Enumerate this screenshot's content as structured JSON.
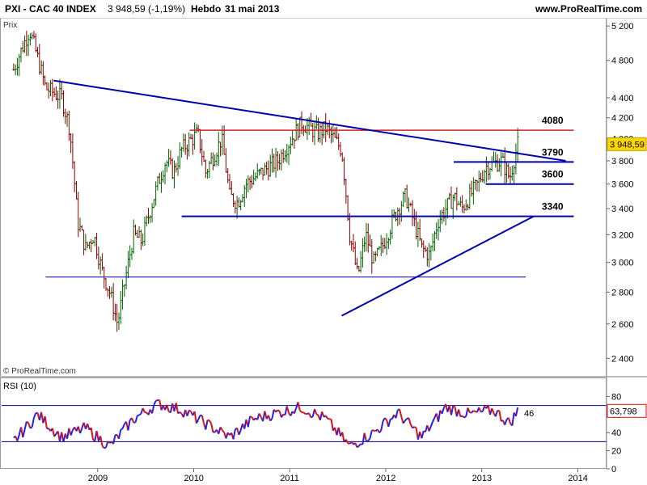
{
  "header": {
    "logo_text": "PXI",
    "instrument": "PXI - CAC 40 INDEX",
    "last_value": "3 948,59 (-1,19%)",
    "period": "Hebdo",
    "date": "31 mai 2013",
    "site": "www.ProRealTime.com"
  },
  "colors": {
    "up_bar": "#006400",
    "down_bar": "#8b0000",
    "trendline": "#0000aa",
    "resistance": "#cc2222",
    "rsi_up": "#2222ee",
    "rsi_down": "#dd1111",
    "rsi_level": "#000080"
  },
  "chart_data": [
    {
      "type": "line",
      "title": "PXI - CAC 40 INDEX",
      "ylabel": "Prix",
      "ylim": [
        2300,
        5300
      ],
      "x_ticks": [
        "2009",
        "2010",
        "2011",
        "2012",
        "2013",
        "2014"
      ],
      "y_ticks": [
        "2 400",
        "2 600",
        "2 800",
        "3 000",
        "3 200",
        "3 400",
        "3 600",
        "3 800",
        "4 000",
        "4 200",
        "4 400",
        "4 800",
        "5 200"
      ],
      "watermark": "© ProRealTime.com",
      "price_label": "3 948,59",
      "series": [
        {
          "x": [
            "2008-02",
            "2008-04",
            "2008-06",
            "2008-08",
            "2008-09",
            "2008-10",
            "2008-11",
            "2008-12",
            "2009-01",
            "2009-02",
            "2009-03",
            "2009-04",
            "2009-05",
            "2009-06",
            "2009-08",
            "2009-09",
            "2009-10",
            "2009-11",
            "2010-01",
            "2010-02",
            "2010-04",
            "2010-05",
            "2010-06",
            "2010-07",
            "2010-09",
            "2010-11",
            "2011-02",
            "2011-04",
            "2011-05",
            "2011-07",
            "2011-08",
            "2011-09",
            "2011-10",
            "2011-11",
            "2011-12",
            "2012-02",
            "2012-03",
            "2012-05",
            "2012-06",
            "2012-07",
            "2012-09",
            "2012-10",
            "2012-12",
            "2013-01",
            "2013-03",
            "2013-04",
            "2013-05"
          ],
          "y": [
            4700,
            5150,
            4500,
            4400,
            4100,
            3300,
            3100,
            3200,
            2950,
            2800,
            2600,
            2900,
            3200,
            3150,
            3600,
            3800,
            3700,
            3900,
            4050,
            3700,
            4000,
            3500,
            3450,
            3600,
            3700,
            3800,
            4150,
            4050,
            4100,
            3900,
            3200,
            2900,
            3200,
            3000,
            3100,
            3400,
            3500,
            3100,
            3050,
            3300,
            3500,
            3400,
            3600,
            3750,
            3800,
            3650,
            3950
          ]
        }
      ],
      "annotations": [
        {
          "label": "4080",
          "value": 4080
        },
        {
          "label": "3790",
          "value": 3790
        },
        {
          "label": "3600",
          "value": 3600
        },
        {
          "label": "3340",
          "value": 3340
        }
      ],
      "support_level": 2900,
      "trendlines": [
        {
          "from": [
            "2008-07",
            4580
          ],
          "to": [
            "2013-11",
            3800
          ]
        },
        {
          "from": [
            "2011-07",
            2650
          ],
          "to": [
            "2013-07",
            3340
          ]
        }
      ]
    },
    {
      "type": "line",
      "title": "RSI (10)",
      "ylim": [
        0,
        100
      ],
      "y_ticks": [
        "0",
        "20",
        "40",
        "60",
        "80"
      ],
      "levels": [
        30,
        70
      ],
      "last_value_label": "63,798",
      "side_text": "46",
      "series": [
        {
          "name": "RSI (10)",
          "x": [
            "2008-02",
            "2008-05",
            "2008-08",
            "2008-11",
            "2009-02",
            "2009-05",
            "2009-08",
            "2009-11",
            "2010-02",
            "2010-05",
            "2010-08",
            "2010-11",
            "2011-02",
            "2011-05",
            "2011-08",
            "2011-11",
            "2012-02",
            "2012-05",
            "2012-08",
            "2012-11",
            "2013-02",
            "2013-04",
            "2013-05"
          ],
          "y": [
            30,
            60,
            35,
            45,
            25,
            55,
            72,
            65,
            50,
            35,
            55,
            62,
            68,
            55,
            25,
            40,
            62,
            35,
            68,
            60,
            65,
            50,
            64
          ]
        }
      ]
    }
  ]
}
